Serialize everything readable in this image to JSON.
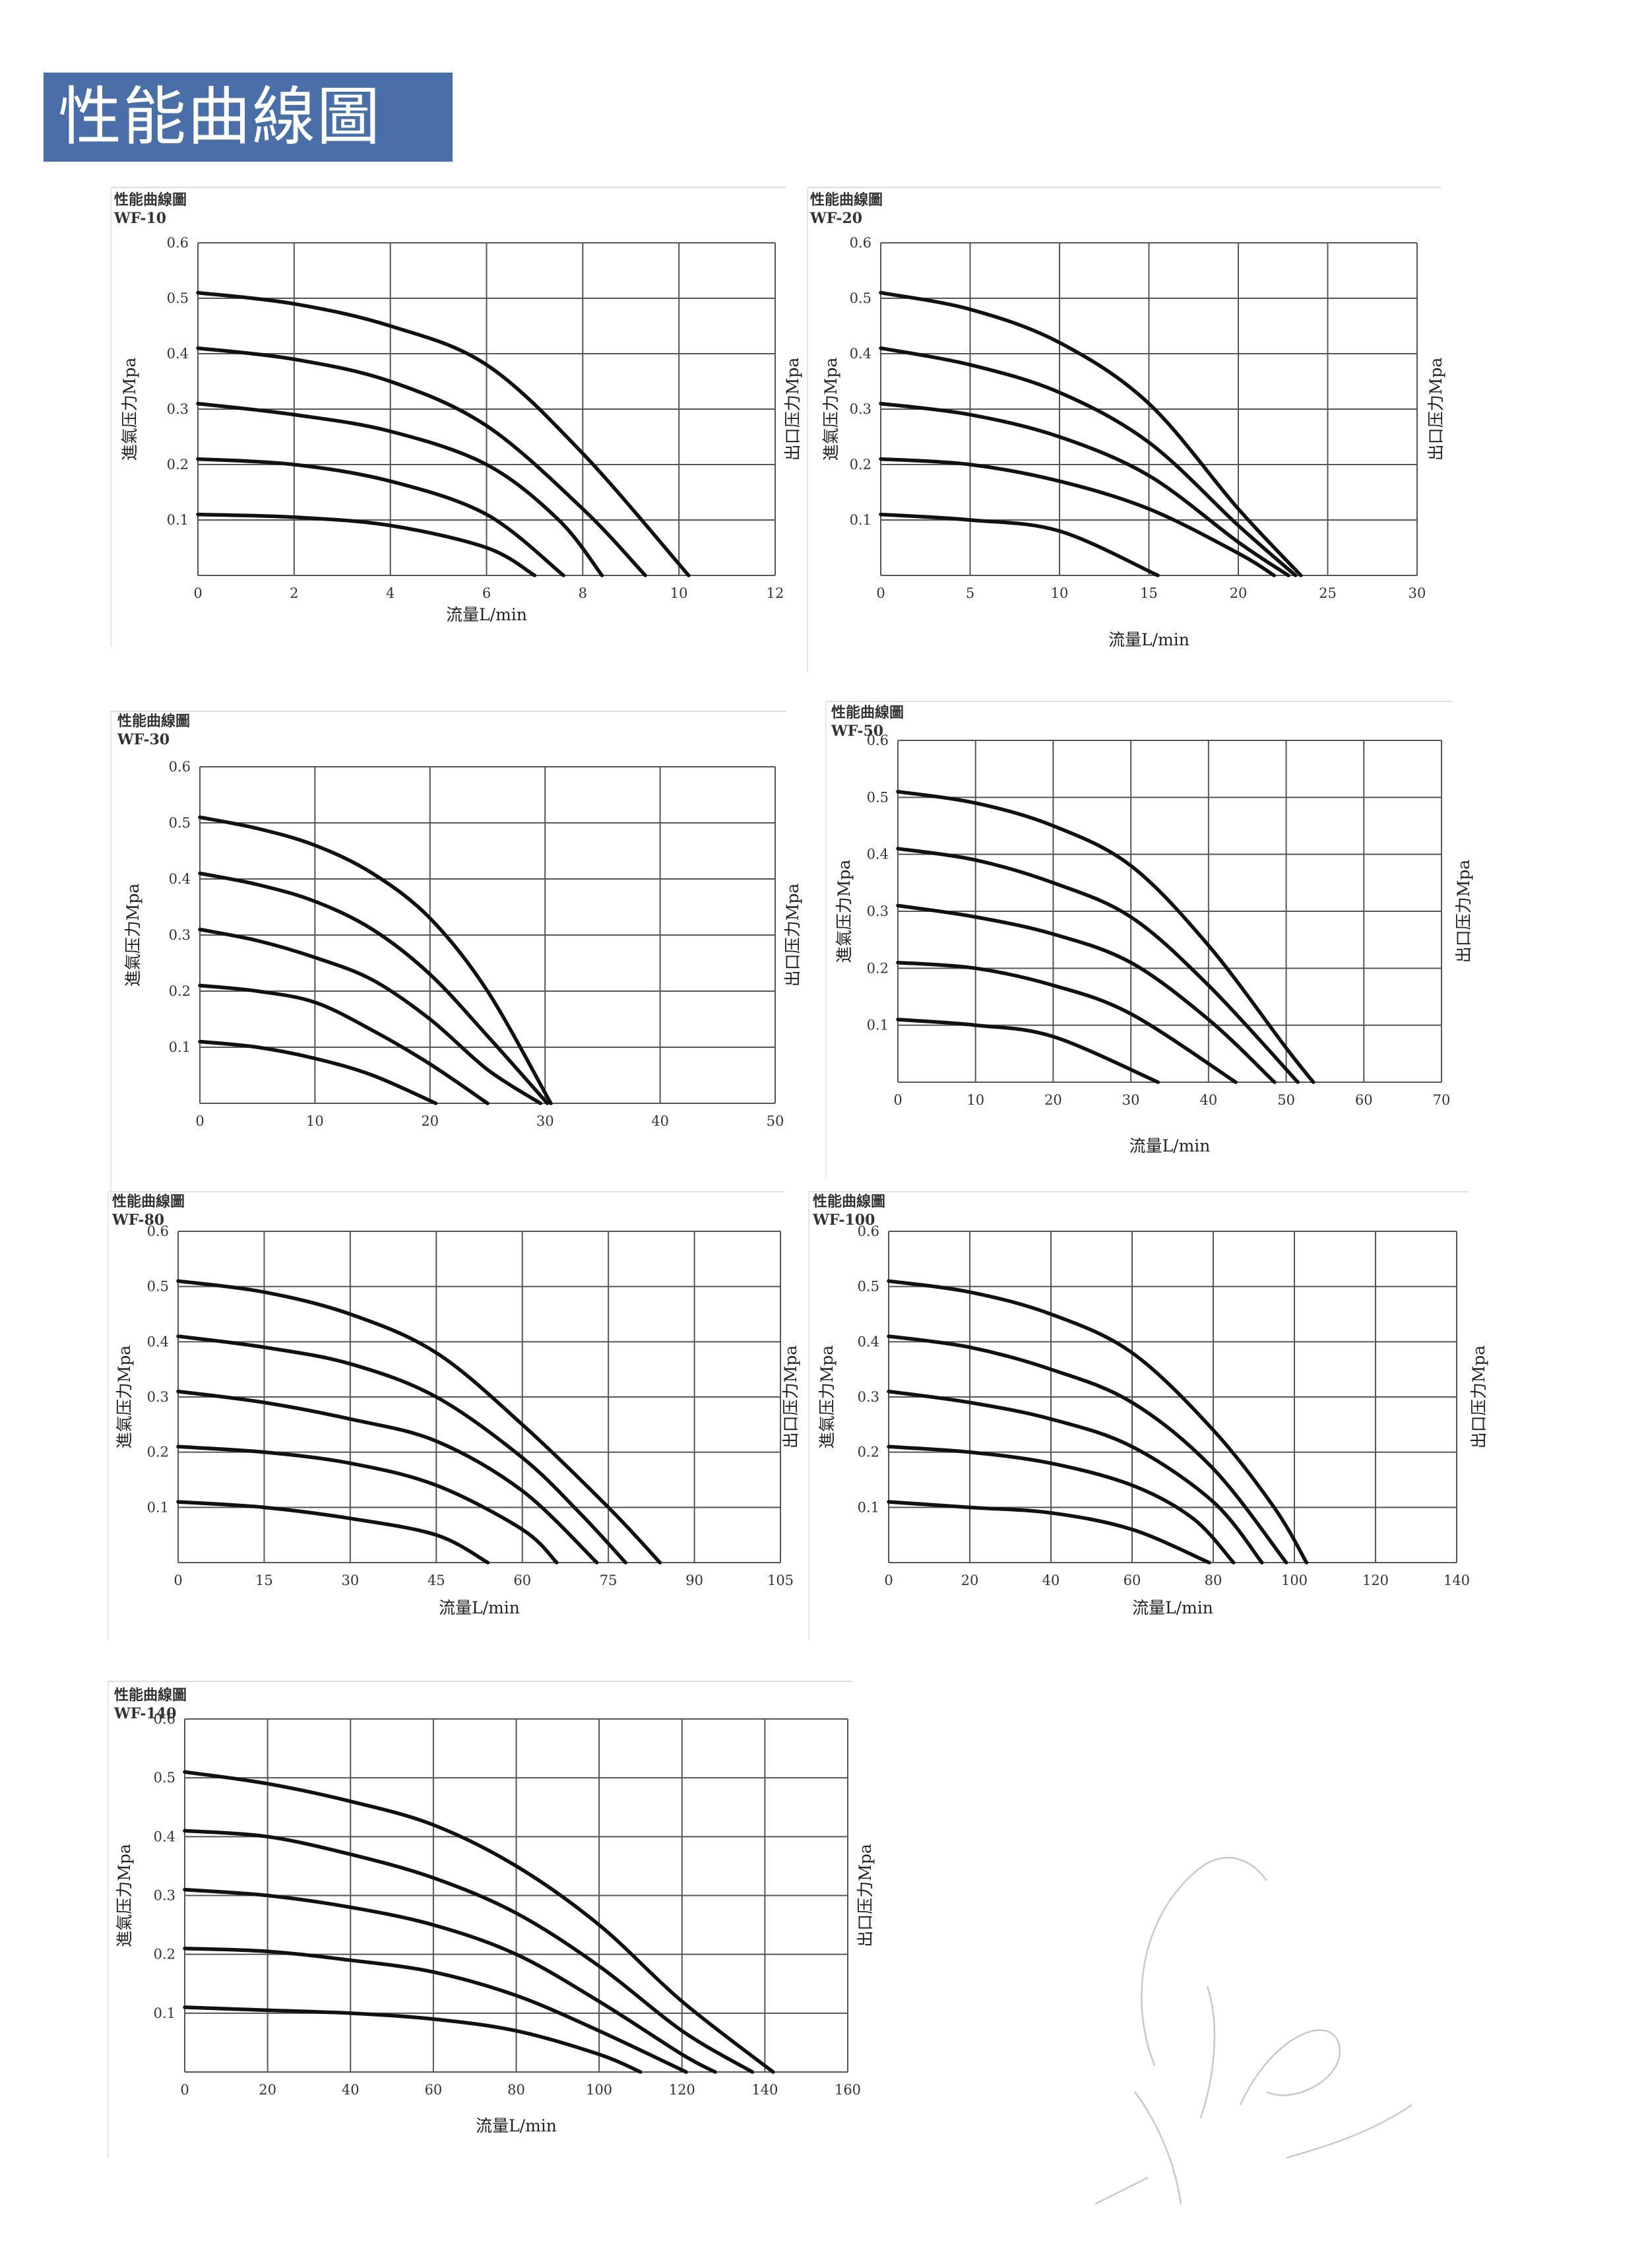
{
  "page_title": "性能曲線圖",
  "chart_data": [
    {
      "type": "line",
      "panel_title": "性能曲線圖",
      "model": "WF-10",
      "xlabel": "流量L/min",
      "ylabel_left": "進氣压力Mpa",
      "ylabel_right": "出口压力Mpa",
      "xlim": [
        0,
        12
      ],
      "ylim": [
        0,
        0.6
      ],
      "xticks": [
        0,
        2,
        4,
        6,
        8,
        10,
        12
      ],
      "yticks": [
        0.1,
        0.2,
        0.3,
        0.4,
        0.5,
        0.6
      ],
      "series": [
        {
          "x": [
            0,
            2,
            4,
            6,
            8,
            10.2
          ],
          "y": [
            0.51,
            0.49,
            0.45,
            0.38,
            0.22,
            0.0
          ]
        },
        {
          "x": [
            0,
            2,
            4,
            6,
            8,
            9.3
          ],
          "y": [
            0.41,
            0.39,
            0.35,
            0.27,
            0.12,
            0.0
          ]
        },
        {
          "x": [
            0,
            2,
            4,
            6,
            7.5,
            8.4
          ],
          "y": [
            0.31,
            0.29,
            0.26,
            0.2,
            0.1,
            0.0
          ]
        },
        {
          "x": [
            0,
            2,
            4,
            6,
            7.6
          ],
          "y": [
            0.21,
            0.2,
            0.17,
            0.11,
            0.0
          ]
        },
        {
          "x": [
            0,
            2,
            4,
            6,
            7.0
          ],
          "y": [
            0.11,
            0.105,
            0.09,
            0.05,
            0.0
          ]
        }
      ]
    },
    {
      "type": "line",
      "panel_title": "性能曲線圖",
      "model": "WF-20",
      "xlabel": "流量L/min",
      "ylabel_left": "進氣压力Mpa",
      "ylabel_right": "出口压力Mpa",
      "xlim": [
        0,
        30
      ],
      "ylim": [
        0,
        0.6
      ],
      "xticks": [
        0,
        5,
        10,
        15,
        20,
        25,
        30
      ],
      "yticks": [
        0.1,
        0.2,
        0.3,
        0.4,
        0.5,
        0.6
      ],
      "series": [
        {
          "x": [
            0,
            5,
            10,
            15,
            20,
            23.5
          ],
          "y": [
            0.51,
            0.48,
            0.42,
            0.31,
            0.12,
            0.0
          ]
        },
        {
          "x": [
            0,
            5,
            10,
            15,
            20,
            23.2
          ],
          "y": [
            0.41,
            0.38,
            0.33,
            0.24,
            0.09,
            0.0
          ]
        },
        {
          "x": [
            0,
            5,
            10,
            15,
            20,
            22.8
          ],
          "y": [
            0.31,
            0.29,
            0.25,
            0.18,
            0.06,
            0.0
          ]
        },
        {
          "x": [
            0,
            5,
            10,
            15,
            20,
            22.0
          ],
          "y": [
            0.21,
            0.2,
            0.17,
            0.12,
            0.04,
            0.0
          ]
        },
        {
          "x": [
            0,
            5,
            10,
            15.5
          ],
          "y": [
            0.11,
            0.1,
            0.08,
            0.0
          ]
        }
      ]
    },
    {
      "type": "line",
      "panel_title": "性能曲線圖",
      "model": "WF-30",
      "xlabel": "",
      "ylabel_left": "進氣压力Mpa",
      "ylabel_right": "出口压力Mpa",
      "xlim": [
        0,
        50
      ],
      "ylim": [
        0,
        0.6
      ],
      "xticks": [
        0,
        10,
        20,
        30,
        40,
        50
      ],
      "yticks": [
        0.1,
        0.2,
        0.3,
        0.4,
        0.5,
        0.6
      ],
      "series": [
        {
          "x": [
            0,
            5,
            10,
            15,
            20,
            25,
            30.5
          ],
          "y": [
            0.51,
            0.49,
            0.46,
            0.41,
            0.33,
            0.2,
            0.0
          ]
        },
        {
          "x": [
            0,
            5,
            10,
            15,
            20,
            25,
            30.2
          ],
          "y": [
            0.41,
            0.39,
            0.36,
            0.31,
            0.23,
            0.12,
            0.0
          ]
        },
        {
          "x": [
            0,
            5,
            10,
            15,
            20,
            25,
            29.6
          ],
          "y": [
            0.31,
            0.29,
            0.26,
            0.22,
            0.15,
            0.06,
            0.0
          ]
        },
        {
          "x": [
            0,
            5,
            10,
            15,
            20,
            25.0
          ],
          "y": [
            0.21,
            0.2,
            0.18,
            0.13,
            0.07,
            0.0
          ]
        },
        {
          "x": [
            0,
            5,
            10,
            15,
            20.5
          ],
          "y": [
            0.11,
            0.1,
            0.08,
            0.05,
            0.0
          ]
        }
      ]
    },
    {
      "type": "line",
      "panel_title": "性能曲線圖",
      "model": "WF-50",
      "xlabel": "流量L/min",
      "ylabel_left": "進氣压力Mpa",
      "ylabel_right": "出口压力Mpa",
      "xlim": [
        0,
        70
      ],
      "ylim": [
        0,
        0.6
      ],
      "xticks": [
        0,
        10,
        20,
        30,
        40,
        50,
        60,
        70
      ],
      "yticks": [
        0.1,
        0.2,
        0.3,
        0.4,
        0.5,
        0.6
      ],
      "series": [
        {
          "x": [
            0,
            10,
            20,
            30,
            40,
            50,
            53.5
          ],
          "y": [
            0.51,
            0.49,
            0.45,
            0.38,
            0.24,
            0.06,
            0.0
          ]
        },
        {
          "x": [
            0,
            10,
            20,
            30,
            40,
            51.5
          ],
          "y": [
            0.41,
            0.39,
            0.35,
            0.29,
            0.17,
            0.0
          ]
        },
        {
          "x": [
            0,
            10,
            20,
            30,
            40,
            48.5
          ],
          "y": [
            0.31,
            0.29,
            0.26,
            0.21,
            0.11,
            0.0
          ]
        },
        {
          "x": [
            0,
            10,
            20,
            30,
            43.5
          ],
          "y": [
            0.21,
            0.2,
            0.17,
            0.12,
            0.0
          ]
        },
        {
          "x": [
            0,
            10,
            20,
            33.5
          ],
          "y": [
            0.11,
            0.1,
            0.08,
            0.0
          ]
        }
      ]
    },
    {
      "type": "line",
      "panel_title": "性能曲線圖",
      "model": "WF-80",
      "xlabel": "流量L/min",
      "ylabel_left": "進氣压力Mpa",
      "ylabel_right": "出口压力Mpa",
      "xlim": [
        0,
        105
      ],
      "ylim": [
        0,
        0.6
      ],
      "xticks": [
        0,
        15,
        30,
        45,
        60,
        75,
        90,
        105
      ],
      "yticks": [
        0.1,
        0.2,
        0.3,
        0.4,
        0.5,
        0.6
      ],
      "series": [
        {
          "x": [
            0,
            15,
            30,
            45,
            60,
            75,
            84
          ],
          "y": [
            0.51,
            0.49,
            0.45,
            0.38,
            0.25,
            0.1,
            0.0
          ]
        },
        {
          "x": [
            0,
            15,
            30,
            45,
            60,
            70,
            78
          ],
          "y": [
            0.41,
            0.39,
            0.36,
            0.3,
            0.19,
            0.09,
            0.0
          ]
        },
        {
          "x": [
            0,
            15,
            30,
            45,
            60,
            73
          ],
          "y": [
            0.31,
            0.29,
            0.26,
            0.22,
            0.13,
            0.0
          ]
        },
        {
          "x": [
            0,
            15,
            30,
            45,
            60,
            66
          ],
          "y": [
            0.21,
            0.2,
            0.18,
            0.14,
            0.06,
            0.0
          ]
        },
        {
          "x": [
            0,
            15,
            30,
            45,
            54
          ],
          "y": [
            0.11,
            0.1,
            0.08,
            0.05,
            0.0
          ]
        }
      ]
    },
    {
      "type": "line",
      "panel_title": "性能曲線圖",
      "model": "WF-100",
      "xlabel": "流量L/min",
      "ylabel_left": "進氣压力Mpa",
      "ylabel_right": "出口压力Mpa",
      "xlim": [
        0,
        140
      ],
      "ylim": [
        0,
        0.6
      ],
      "xticks": [
        0,
        20,
        40,
        60,
        80,
        100,
        120,
        140
      ],
      "yticks": [
        0.1,
        0.2,
        0.3,
        0.4,
        0.5,
        0.6
      ],
      "series": [
        {
          "x": [
            0,
            20,
            40,
            60,
            80,
            95,
            103
          ],
          "y": [
            0.51,
            0.49,
            0.45,
            0.38,
            0.24,
            0.1,
            0.0
          ]
        },
        {
          "x": [
            0,
            20,
            40,
            60,
            80,
            98
          ],
          "y": [
            0.41,
            0.39,
            0.35,
            0.29,
            0.17,
            0.0
          ]
        },
        {
          "x": [
            0,
            20,
            40,
            60,
            80,
            92
          ],
          "y": [
            0.31,
            0.29,
            0.26,
            0.21,
            0.11,
            0.0
          ]
        },
        {
          "x": [
            0,
            20,
            40,
            60,
            75,
            85
          ],
          "y": [
            0.21,
            0.2,
            0.18,
            0.14,
            0.08,
            0.0
          ]
        },
        {
          "x": [
            0,
            20,
            40,
            60,
            79
          ],
          "y": [
            0.11,
            0.1,
            0.09,
            0.06,
            0.0
          ]
        }
      ]
    },
    {
      "type": "line",
      "panel_title": "性能曲線圖",
      "model": "WF-140",
      "xlabel": "流量L/min",
      "ylabel_left": "進氣压力Mpa",
      "ylabel_right": "出口压力Mpa",
      "xlim": [
        0,
        160
      ],
      "ylim": [
        0,
        0.6
      ],
      "xticks": [
        0,
        20,
        40,
        60,
        80,
        100,
        120,
        140,
        160
      ],
      "yticks": [
        0.1,
        0.2,
        0.3,
        0.4,
        0.5,
        0.6
      ],
      "series": [
        {
          "x": [
            0,
            20,
            40,
            60,
            80,
            100,
            120,
            142
          ],
          "y": [
            0.51,
            0.49,
            0.46,
            0.42,
            0.35,
            0.25,
            0.12,
            0.0
          ]
        },
        {
          "x": [
            0,
            20,
            40,
            60,
            80,
            100,
            120,
            137
          ],
          "y": [
            0.41,
            0.4,
            0.37,
            0.33,
            0.27,
            0.18,
            0.07,
            0.0
          ]
        },
        {
          "x": [
            0,
            20,
            40,
            60,
            80,
            100,
            120,
            128
          ],
          "y": [
            0.31,
            0.3,
            0.28,
            0.25,
            0.2,
            0.12,
            0.03,
            0.0
          ]
        },
        {
          "x": [
            0,
            20,
            40,
            60,
            80,
            100,
            121
          ],
          "y": [
            0.21,
            0.205,
            0.19,
            0.17,
            0.13,
            0.07,
            0.0
          ]
        },
        {
          "x": [
            0,
            20,
            40,
            60,
            80,
            100,
            110
          ],
          "y": [
            0.11,
            0.105,
            0.1,
            0.09,
            0.07,
            0.03,
            0.0
          ]
        }
      ]
    }
  ]
}
